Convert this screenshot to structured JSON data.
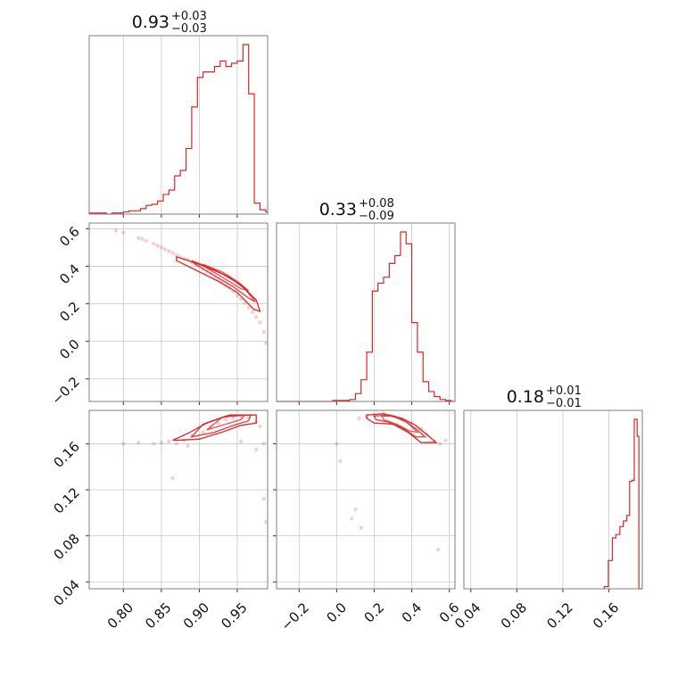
{
  "chart_data": {
    "type": "corner",
    "color": "#d62728",
    "parameters": [
      {
        "summary": {
          "median": "0.93",
          "plus": "+0.03",
          "minus": "−0.03"
        },
        "range": [
          0.755,
          0.99
        ],
        "ticks": [
          {
            "v": 0.8,
            "label": "0.80"
          },
          {
            "v": 0.85,
            "label": "0.85"
          },
          {
            "v": 0.9,
            "label": "0.90"
          },
          {
            "v": 0.95,
            "label": "0.95"
          }
        ],
        "histogram": {
          "edges": [
            0.755,
            0.7625,
            0.77,
            0.7775,
            0.785,
            0.7925,
            0.8,
            0.8075,
            0.815,
            0.8225,
            0.83,
            0.8375,
            0.845,
            0.8525,
            0.86,
            0.8675,
            0.875,
            0.8825,
            0.89,
            0.8975,
            0.905,
            0.9125,
            0.92,
            0.9275,
            0.935,
            0.9425,
            0.95,
            0.9575,
            0.965,
            0.9725,
            0.98,
            0.9875,
            0.99
          ],
          "counts": [
            1,
            1,
            1,
            0,
            1,
            1,
            2,
            3,
            3,
            5,
            8,
            9,
            12,
            18,
            22,
            35,
            40,
            60,
            98,
            125,
            130,
            130,
            135,
            140,
            135,
            138,
            140,
            155,
            110,
            10,
            4,
            2
          ]
        }
      },
      {
        "summary": {
          "median": "0.33",
          "plus": "+0.08",
          "minus": "−0.09"
        },
        "range": [
          -0.32,
          0.63
        ],
        "ticks": [
          {
            "v": -0.2,
            "label": "−0.2"
          },
          {
            "v": 0.0,
            "label": "0.0"
          },
          {
            "v": 0.2,
            "label": "0.2"
          },
          {
            "v": 0.4,
            "label": "0.4"
          },
          {
            "v": 0.6,
            "label": "0.6"
          }
        ],
        "ticks_left": [
          {
            "v": -0.2,
            "label": "−0.2"
          },
          {
            "v": 0.0,
            "label": "0.0"
          },
          {
            "v": 0.2,
            "label": "0.2"
          },
          {
            "v": 0.4,
            "label": "0.4"
          },
          {
            "v": 0.6,
            "label": "0.6"
          }
        ],
        "histogram": {
          "edges": [
            -0.32,
            -0.29,
            -0.26,
            -0.23,
            -0.2,
            -0.17,
            -0.14,
            -0.11,
            -0.08,
            -0.05,
            -0.02,
            0.01,
            0.04,
            0.07,
            0.1,
            0.13,
            0.16,
            0.19,
            0.22,
            0.25,
            0.28,
            0.31,
            0.34,
            0.37,
            0.4,
            0.43,
            0.46,
            0.49,
            0.52,
            0.55,
            0.58,
            0.61,
            0.63
          ],
          "counts": [
            0,
            0,
            0,
            0,
            0,
            0,
            0,
            0,
            0,
            0,
            1,
            1,
            1,
            2,
            8,
            22,
            50,
            112,
            120,
            126,
            140,
            148,
            172,
            160,
            80,
            50,
            20,
            10,
            5,
            2,
            1,
            0
          ]
        }
      },
      {
        "summary": {
          "median": "0.18",
          "plus": "+0.01",
          "minus": "−0.01"
        },
        "range": [
          0.034,
          0.189
        ],
        "ticks": [
          {
            "v": 0.04,
            "label": "0.04"
          },
          {
            "v": 0.08,
            "label": "0.08"
          },
          {
            "v": 0.12,
            "label": "0.12"
          },
          {
            "v": 0.16,
            "label": "0.16"
          }
        ],
        "ticks_left": [
          {
            "v": 0.04,
            "label": "0.04"
          },
          {
            "v": 0.08,
            "label": "0.08"
          },
          {
            "v": 0.12,
            "label": "0.12"
          },
          {
            "v": 0.16,
            "label": "0.16"
          }
        ],
        "histogram": {
          "edges": [
            0.156,
            0.1595,
            0.163,
            0.166,
            0.1695,
            0.1725,
            0.1755,
            0.178,
            0.18,
            0.182,
            0.1845,
            0.186,
            0.189
          ],
          "counts": [
            2,
            25,
            45,
            48,
            55,
            60,
            65,
            95,
            96,
            150,
            135,
            0
          ]
        }
      }
    ],
    "pairs": [
      {
        "x_param": 0,
        "y_param": 1,
        "scatter": [
          [
            0.79,
            0.59
          ],
          [
            0.8,
            0.58
          ],
          [
            0.82,
            0.55
          ],
          [
            0.825,
            0.545
          ],
          [
            0.83,
            0.535
          ],
          [
            0.84,
            0.52
          ],
          [
            0.845,
            0.51
          ],
          [
            0.85,
            0.5
          ],
          [
            0.855,
            0.49
          ],
          [
            0.86,
            0.48
          ],
          [
            0.865,
            0.47
          ],
          [
            0.87,
            0.46
          ],
          [
            0.875,
            0.45
          ],
          [
            0.88,
            0.44
          ],
          [
            0.885,
            0.435
          ],
          [
            0.89,
            0.42
          ],
          [
            0.895,
            0.41
          ],
          [
            0.9,
            0.4
          ],
          [
            0.905,
            0.385
          ],
          [
            0.91,
            0.37
          ],
          [
            0.915,
            0.36
          ],
          [
            0.92,
            0.345
          ],
          [
            0.925,
            0.33
          ],
          [
            0.93,
            0.315
          ],
          [
            0.935,
            0.3
          ],
          [
            0.94,
            0.285
          ],
          [
            0.945,
            0.265
          ],
          [
            0.95,
            0.245
          ],
          [
            0.955,
            0.225
          ],
          [
            0.96,
            0.205
          ],
          [
            0.965,
            0.18
          ],
          [
            0.97,
            0.155
          ],
          [
            0.975,
            0.13
          ],
          [
            0.98,
            0.1
          ],
          [
            0.985,
            0.05
          ],
          [
            0.988,
            -0.01
          ]
        ],
        "contours": [
          [
            [
              0.87,
              0.45
            ],
            [
              0.9,
              0.41
            ],
            [
              0.93,
              0.36
            ],
            [
              0.955,
              0.3
            ],
            [
              0.975,
              0.22
            ],
            [
              0.98,
              0.16
            ],
            [
              0.972,
              0.17
            ],
            [
              0.95,
              0.26
            ],
            [
              0.925,
              0.32
            ],
            [
              0.895,
              0.38
            ],
            [
              0.87,
              0.43
            ]
          ],
          [
            [
              0.89,
              0.43
            ],
            [
              0.915,
              0.39
            ],
            [
              0.94,
              0.34
            ],
            [
              0.96,
              0.28
            ],
            [
              0.974,
              0.21
            ],
            [
              0.965,
              0.23
            ],
            [
              0.945,
              0.29
            ],
            [
              0.92,
              0.35
            ],
            [
              0.895,
              0.41
            ]
          ],
          [
            [
              0.905,
              0.41
            ],
            [
              0.93,
              0.37
            ],
            [
              0.95,
              0.32
            ],
            [
              0.965,
              0.27
            ],
            [
              0.955,
              0.28
            ],
            [
              0.935,
              0.33
            ],
            [
              0.91,
              0.39
            ]
          ]
        ]
      },
      {
        "x_param": 0,
        "y_param": 2,
        "scatter": [
          [
            0.8,
            0.16
          ],
          [
            0.82,
            0.161
          ],
          [
            0.84,
            0.16
          ],
          [
            0.85,
            0.161
          ],
          [
            0.86,
            0.162
          ],
          [
            0.87,
            0.16
          ],
          [
            0.88,
            0.163
          ],
          [
            0.885,
            0.158
          ],
          [
            0.89,
            0.167
          ],
          [
            0.905,
            0.17
          ],
          [
            0.915,
            0.175
          ],
          [
            0.925,
            0.178
          ],
          [
            0.935,
            0.181
          ],
          [
            0.945,
            0.182
          ],
          [
            0.955,
            0.183
          ],
          [
            0.965,
            0.183
          ],
          [
            0.975,
            0.179
          ],
          [
            0.98,
            0.175
          ],
          [
            0.985,
            0.16
          ],
          [
            0.865,
            0.13
          ],
          [
            0.985,
            0.112
          ],
          [
            0.988,
            0.092
          ],
          [
            0.975,
            0.155
          ],
          [
            0.955,
            0.162
          ]
        ],
        "contours": [
          [
            [
              0.87,
              0.163
            ],
            [
              0.9,
              0.164
            ],
            [
              0.93,
              0.17
            ],
            [
              0.955,
              0.176
            ],
            [
              0.975,
              0.178
            ],
            [
              0.975,
              0.185
            ],
            [
              0.94,
              0.185
            ],
            [
              0.91,
              0.178
            ],
            [
              0.885,
              0.169
            ],
            [
              0.865,
              0.163
            ]
          ],
          [
            [
              0.89,
              0.166
            ],
            [
              0.92,
              0.17
            ],
            [
              0.945,
              0.176
            ],
            [
              0.965,
              0.18
            ],
            [
              0.968,
              0.185
            ],
            [
              0.935,
              0.184
            ],
            [
              0.905,
              0.177
            ]
          ],
          [
            [
              0.91,
              0.172
            ],
            [
              0.935,
              0.177
            ],
            [
              0.955,
              0.181
            ],
            [
              0.96,
              0.185
            ],
            [
              0.93,
              0.183
            ]
          ]
        ]
      },
      {
        "x_param": 1,
        "y_param": 2,
        "scatter": [
          [
            0.16,
            0.184
          ],
          [
            0.2,
            0.185
          ],
          [
            0.25,
            0.186
          ],
          [
            0.3,
            0.184
          ],
          [
            0.35,
            0.181
          ],
          [
            0.4,
            0.178
          ],
          [
            0.45,
            0.173
          ],
          [
            0.48,
            0.168
          ],
          [
            0.52,
            0.162
          ],
          [
            0.55,
            0.16
          ],
          [
            0.12,
            0.182
          ],
          [
            0.58,
            0.163
          ],
          [
            0.1,
            0.103
          ],
          [
            0.08,
            0.095
          ],
          [
            0.13,
            0.087
          ],
          [
            0.54,
            0.068
          ],
          [
            0.0,
            0.16
          ],
          [
            0.02,
            0.145
          ]
        ],
        "contours": [
          [
            [
              0.16,
              0.185
            ],
            [
              0.25,
              0.186
            ],
            [
              0.35,
              0.182
            ],
            [
              0.42,
              0.176
            ],
            [
              0.48,
              0.168
            ],
            [
              0.53,
              0.161
            ],
            [
              0.45,
              0.161
            ],
            [
              0.38,
              0.17
            ],
            [
              0.3,
              0.177
            ],
            [
              0.2,
              0.178
            ],
            [
              0.16,
              0.182
            ]
          ],
          [
            [
              0.2,
              0.184
            ],
            [
              0.28,
              0.185
            ],
            [
              0.36,
              0.18
            ],
            [
              0.43,
              0.172
            ],
            [
              0.47,
              0.166
            ],
            [
              0.42,
              0.166
            ],
            [
              0.35,
              0.174
            ],
            [
              0.27,
              0.179
            ],
            [
              0.21,
              0.181
            ]
          ],
          [
            [
              0.24,
              0.184
            ],
            [
              0.31,
              0.184
            ],
            [
              0.38,
              0.178
            ],
            [
              0.43,
              0.17
            ],
            [
              0.39,
              0.171
            ],
            [
              0.32,
              0.177
            ],
            [
              0.25,
              0.181
            ]
          ]
        ]
      }
    ]
  }
}
